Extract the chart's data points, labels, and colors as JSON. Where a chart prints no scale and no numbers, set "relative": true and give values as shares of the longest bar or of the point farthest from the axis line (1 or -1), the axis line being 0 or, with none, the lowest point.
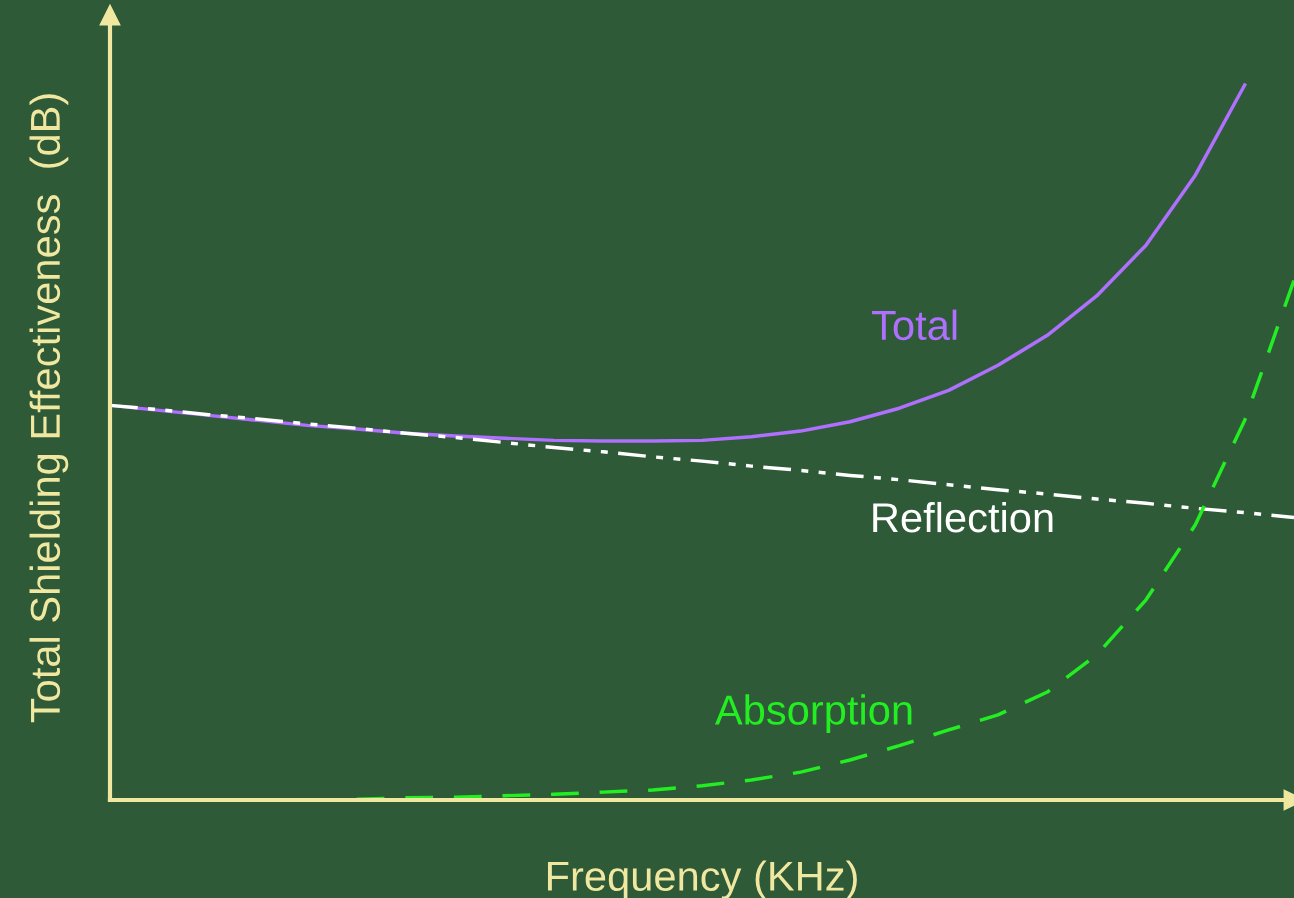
{
  "chart_data": {
    "type": "line",
    "relative": true,
    "xlabel": "Frequency (KHz)",
    "ylabel": "Total Shielding Effectiveness  (dB)",
    "legend": false,
    "grid": false,
    "categories": [
      null,
      null,
      null,
      null,
      null,
      null,
      null,
      null,
      null,
      null,
      null,
      null,
      null,
      null,
      null,
      null,
      null,
      null,
      null,
      null,
      null,
      null,
      null,
      null,
      null
    ],
    "series": [
      {
        "name": "Total",
        "color": "#b070ff",
        "line_style": "solid",
        "values": [
          0.552,
          0.545,
          0.538,
          0.531,
          0.524,
          0.519,
          0.513,
          0.509,
          0.506,
          0.503,
          0.502,
          0.502,
          0.503,
          0.508,
          0.516,
          0.529,
          0.548,
          0.573,
          0.608,
          0.65,
          0.705,
          0.776,
          0.874,
          1.0,
          null
        ]
      },
      {
        "name": "Reflection",
        "color": "#ffffff",
        "line_style": "dashdot",
        "values": [
          0.552,
          0.546,
          0.539,
          0.533,
          0.526,
          0.52,
          0.513,
          0.507,
          0.5,
          0.493,
          0.487,
          0.48,
          0.474,
          0.467,
          0.461,
          0.454,
          0.448,
          0.441,
          0.434,
          0.428,
          0.421,
          0.415,
          0.408,
          0.402,
          0.395
        ]
      },
      {
        "name": "Absorption",
        "color": "#22ee22",
        "line_style": "dashed",
        "values": [
          null,
          null,
          null,
          null,
          null,
          0.001,
          0.003,
          0.004,
          0.006,
          0.008,
          0.011,
          0.014,
          0.02,
          0.028,
          0.039,
          0.056,
          0.076,
          0.098,
          0.119,
          0.151,
          0.203,
          0.28,
          0.385,
          0.531,
          0.727
        ]
      }
    ]
  }
}
